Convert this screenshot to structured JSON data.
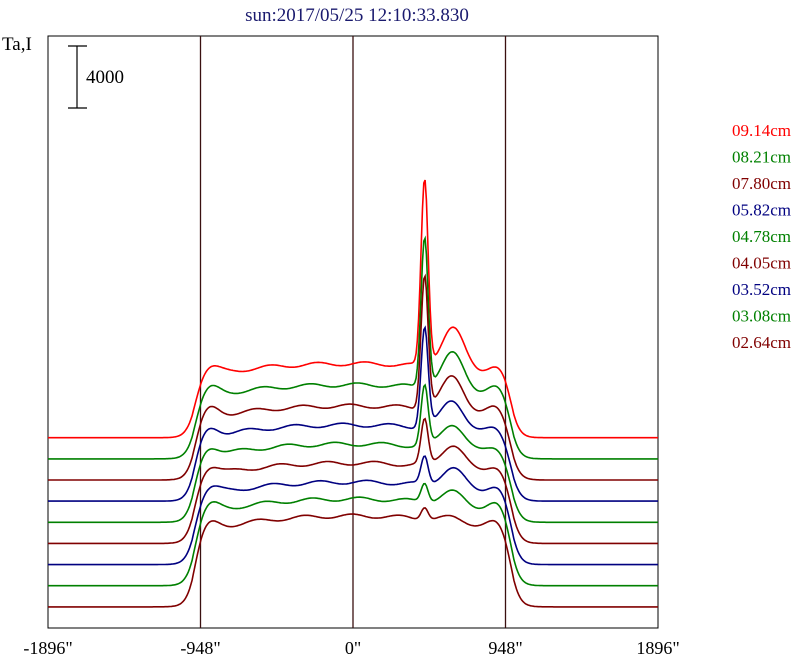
{
  "chart_data": {
    "type": "line",
    "title": "sun:2017/05/25 12:10:33.830",
    "title_color": "#1a1a6e",
    "ylabel": "Ta,I",
    "scale_bar_label": "4000",
    "x_ticks": [
      "-1896\"",
      "-948\"",
      "0\"",
      "948\"",
      "1896\""
    ],
    "x_tick_values": [
      -1896,
      -948,
      0,
      948,
      1896
    ],
    "xlim": [
      -1896,
      1896
    ],
    "ylim": [
      -1000,
      27000
    ],
    "vertical_lines_at": [
      -948,
      0,
      948
    ],
    "grid": false,
    "legend_position": "right",
    "series": [
      {
        "name": "09.14cm",
        "color": "#ff0000",
        "offset": 8000,
        "base": 0,
        "disk": 3500,
        "limb": 2000,
        "peak1": 8800,
        "peak2": 1900
      },
      {
        "name": "08.21cm",
        "color": "#008000",
        "offset": 7000,
        "base": 0,
        "disk": 3500,
        "limb": 2100,
        "peak1": 7100,
        "peak2": 1700
      },
      {
        "name": "07.80cm",
        "color": "#800000",
        "offset": 6000,
        "base": 0,
        "disk": 3500,
        "limb": 2200,
        "peak1": 6300,
        "peak2": 1600
      },
      {
        "name": "05.82cm",
        "color": "#000080",
        "offset": 5000,
        "base": 0,
        "disk": 3600,
        "limb": 2000,
        "peak1": 4700,
        "peak2": 1400
      },
      {
        "name": "04.78cm",
        "color": "#008000",
        "offset": 4000,
        "base": 0,
        "disk": 3700,
        "limb": 2100,
        "peak1": 2800,
        "peak2": 1200
      },
      {
        "name": "04.05cm",
        "color": "#800000",
        "offset": 3000,
        "base": 0,
        "disk": 3800,
        "limb": 2200,
        "peak1": 2100,
        "peak2": 1100
      },
      {
        "name": "03.52cm",
        "color": "#000080",
        "offset": 2000,
        "base": 0,
        "disk": 3900,
        "limb": 2000,
        "peak1": 1300,
        "peak2": 900
      },
      {
        "name": "03.08cm",
        "color": "#008000",
        "offset": 1000,
        "base": 0,
        "disk": 4100,
        "limb": 2100,
        "peak1": 900,
        "peak2": 600
      },
      {
        "name": "02.64cm",
        "color": "#800000",
        "offset": 0,
        "base": 0,
        "disk": 4300,
        "limb": 1800,
        "peak1": 600,
        "peak2": 200
      }
    ]
  }
}
